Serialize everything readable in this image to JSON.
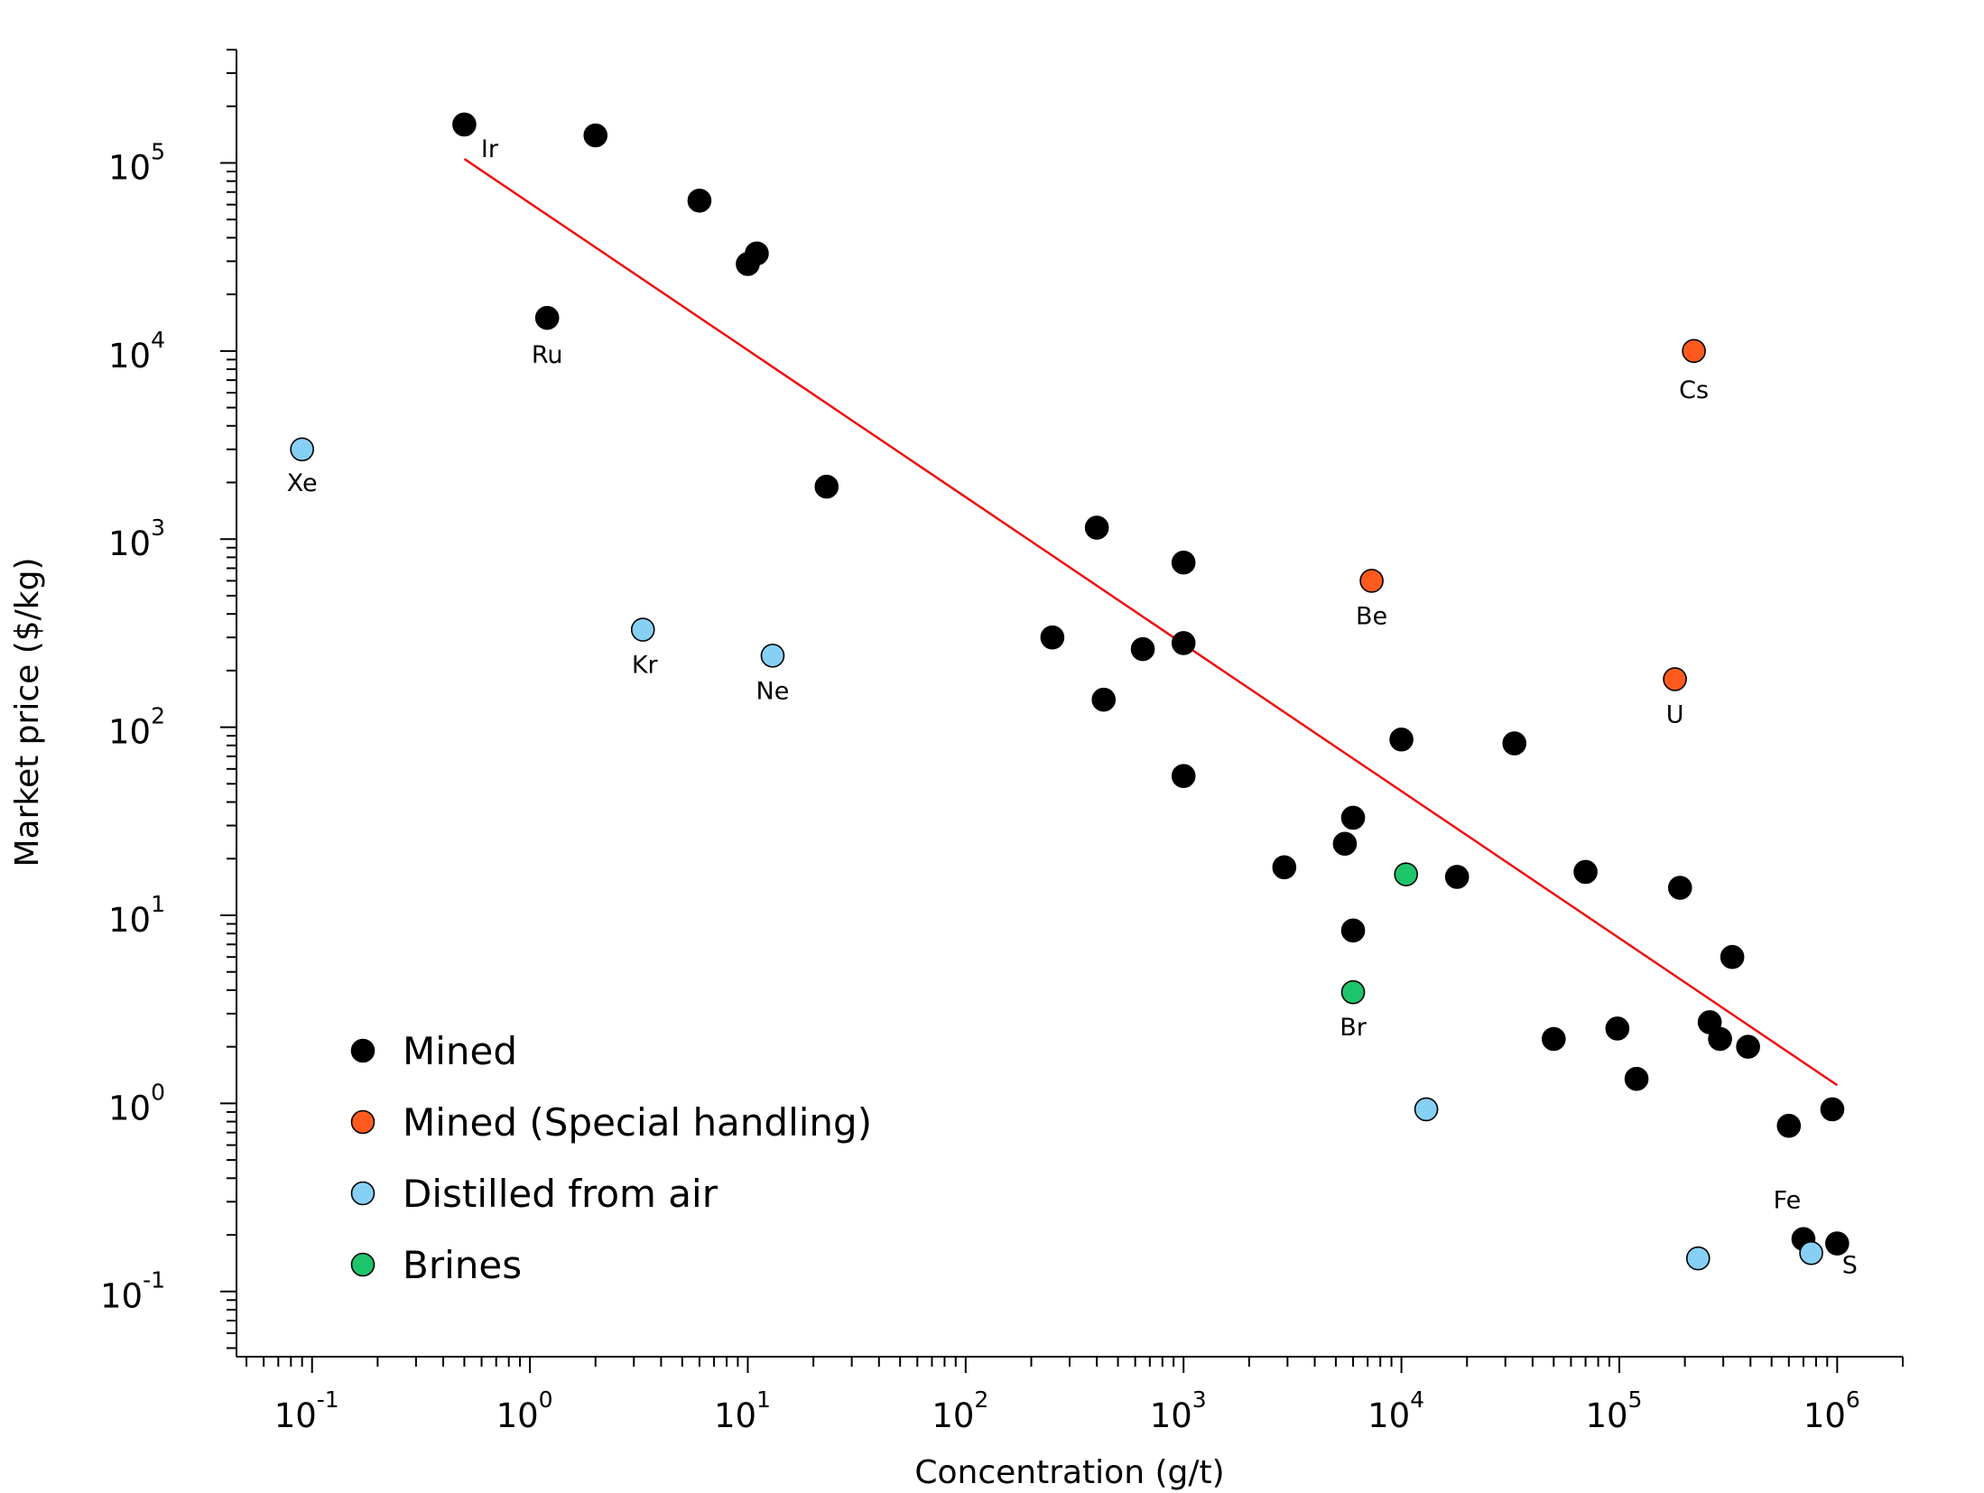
{
  "chart_data": {
    "type": "scatter",
    "xlabel": "Concentration (g/t)",
    "ylabel": "Market price ($/kg)",
    "xscale": "log",
    "yscale": "log",
    "xlim": [
      0.045,
      2000000
    ],
    "ylim": [
      0.045,
      400000
    ],
    "xticks": [
      {
        "base": "10",
        "exp": "-1",
        "value": 0.1
      },
      {
        "base": "10",
        "exp": "0",
        "value": 1
      },
      {
        "base": "10",
        "exp": "1",
        "value": 10
      },
      {
        "base": "10",
        "exp": "2",
        "value": 100
      },
      {
        "base": "10",
        "exp": "3",
        "value": 1000
      },
      {
        "base": "10",
        "exp": "4",
        "value": 10000
      },
      {
        "base": "10",
        "exp": "5",
        "value": 100000
      },
      {
        "base": "10",
        "exp": "6",
        "value": 1000000
      }
    ],
    "yticks": [
      {
        "base": "10",
        "exp": "-1",
        "value": 0.1
      },
      {
        "base": "10",
        "exp": "0",
        "value": 1
      },
      {
        "base": "10",
        "exp": "1",
        "value": 10
      },
      {
        "base": "10",
        "exp": "2",
        "value": 100
      },
      {
        "base": "10",
        "exp": "3",
        "value": 1000
      },
      {
        "base": "10",
        "exp": "4",
        "value": 10000
      },
      {
        "base": "10",
        "exp": "5",
        "value": 100000
      }
    ],
    "grid": false,
    "legend_position": "bottom-left",
    "trendline": {
      "color": "#ee1111",
      "points": [
        [
          0.5,
          105000
        ],
        [
          1000000,
          1.25
        ]
      ]
    },
    "series": [
      {
        "name": "Mined",
        "color": "#000000",
        "points": [
          {
            "x": 0.5,
            "y": 160000,
            "label": "Ir"
          },
          {
            "x": 2.0,
            "y": 140000
          },
          {
            "x": 1.2,
            "y": 15000,
            "label": "Ru"
          },
          {
            "x": 6.0,
            "y": 63000
          },
          {
            "x": 11,
            "y": 33000
          },
          {
            "x": 10,
            "y": 29000
          },
          {
            "x": 23,
            "y": 1900
          },
          {
            "x": 400,
            "y": 1150
          },
          {
            "x": 1000,
            "y": 750
          },
          {
            "x": 250,
            "y": 300
          },
          {
            "x": 650,
            "y": 260
          },
          {
            "x": 1000,
            "y": 280
          },
          {
            "x": 430,
            "y": 140
          },
          {
            "x": 1000,
            "y": 55
          },
          {
            "x": 10000,
            "y": 86
          },
          {
            "x": 33000,
            "y": 82
          },
          {
            "x": 6000,
            "y": 33
          },
          {
            "x": 5500,
            "y": 24
          },
          {
            "x": 2900,
            "y": 18
          },
          {
            "x": 18000,
            "y": 16
          },
          {
            "x": 70000,
            "y": 17
          },
          {
            "x": 190000,
            "y": 14
          },
          {
            "x": 6000,
            "y": 8.3
          },
          {
            "x": 330000,
            "y": 6.0
          },
          {
            "x": 50000,
            "y": 2.2
          },
          {
            "x": 98000,
            "y": 2.5
          },
          {
            "x": 260000,
            "y": 2.7
          },
          {
            "x": 290000,
            "y": 2.2
          },
          {
            "x": 390000,
            "y": 2.0
          },
          {
            "x": 120000,
            "y": 1.35
          },
          {
            "x": 600000,
            "y": 0.76
          },
          {
            "x": 950000,
            "y": 0.93
          },
          {
            "x": 700000,
            "y": 0.19,
            "label": "Fe"
          },
          {
            "x": 1000000,
            "y": 0.18,
            "label": "S"
          }
        ]
      },
      {
        "name": "Mined (Special handling)",
        "color": "#ff5a1e",
        "points": [
          {
            "x": 220000,
            "y": 10000,
            "label": "Cs"
          },
          {
            "x": 7300,
            "y": 600,
            "label": "Be"
          },
          {
            "x": 180000,
            "y": 180,
            "label": "U"
          }
        ]
      },
      {
        "name": "Distilled from air",
        "color": "#87d0f5",
        "points": [
          {
            "x": 0.09,
            "y": 3000,
            "label": "Xe"
          },
          {
            "x": 3.3,
            "y": 330,
            "label": "Kr"
          },
          {
            "x": 13,
            "y": 240,
            "label": "Ne"
          },
          {
            "x": 13000,
            "y": 0.93
          },
          {
            "x": 230000,
            "y": 0.15
          },
          {
            "x": 760000,
            "y": 0.16
          }
        ]
      },
      {
        "name": "Brines",
        "color": "#1ec46a",
        "points": [
          {
            "x": 10500,
            "y": 16.5
          },
          {
            "x": 6000,
            "y": 3.9,
            "label": "Br"
          }
        ]
      }
    ]
  }
}
